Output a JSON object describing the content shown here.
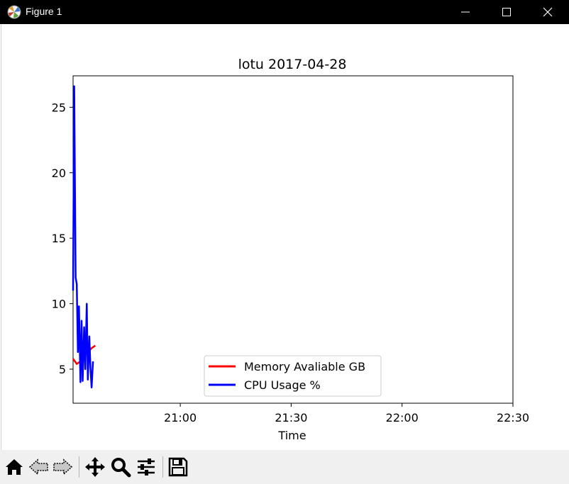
{
  "window": {
    "title": "Figure 1",
    "app_icon": "matplotlib-icon",
    "controls": [
      "minimize-icon",
      "maximize-icon",
      "close-icon"
    ]
  },
  "toolbar": {
    "buttons": [
      {
        "name": "home-icon",
        "tooltip": "Reset original view"
      },
      {
        "name": "back-arrow-icon",
        "tooltip": "Back to previous view"
      },
      {
        "name": "forward-arrow-icon",
        "tooltip": "Forward to next view"
      },
      {
        "name": "pan-move-icon",
        "tooltip": "Pan axes"
      },
      {
        "name": "zoom-magnifier-icon",
        "tooltip": "Zoom to rectangle"
      },
      {
        "name": "configure-subplots-icon",
        "tooltip": "Configure subplots"
      },
      {
        "name": "save-floppy-icon",
        "tooltip": "Save the figure"
      }
    ],
    "bg_color": "#f0f0f0"
  },
  "chart_data": {
    "type": "line",
    "title": "lotu 2017-04-28",
    "xlabel": "Time",
    "ylabel": "",
    "x_ticks": [
      "21:00",
      "21:30",
      "22:00",
      "22:30"
    ],
    "y_ticks": [
      5,
      10,
      15,
      20,
      25
    ],
    "xlim": [
      "20:31",
      "22:30"
    ],
    "ylim": [
      2.4,
      27.4
    ],
    "grid": false,
    "legend_position": "lower center",
    "series": [
      {
        "name": "Memory Avaliable GB",
        "color": "#ff0000",
        "points": [
          [
            "20:31",
            5.8
          ],
          [
            "20:32",
            5.4
          ],
          [
            "20:33",
            5.6
          ],
          [
            "20:34",
            6.0
          ],
          [
            "20:35",
            6.3
          ],
          [
            "20:36",
            6.6
          ],
          [
            "20:37",
            6.8
          ]
        ]
      },
      {
        "name": "CPU Usage %",
        "color": "#0000ff",
        "points": [
          [
            "20:31",
            11.0
          ],
          [
            "20:31.3",
            26.6
          ],
          [
            "20:31.7",
            12.0
          ],
          [
            "20:32",
            11.5
          ],
          [
            "20:32.3",
            6.3
          ],
          [
            "20:32.6",
            9.8
          ],
          [
            "20:33",
            4.0
          ],
          [
            "20:33.3",
            8.7
          ],
          [
            "20:33.6",
            4.1
          ],
          [
            "20:34",
            8.2
          ],
          [
            "20:34.3",
            5.0
          ],
          [
            "20:34.7",
            10.0
          ],
          [
            "20:35",
            4.2
          ],
          [
            "20:35.4",
            7.5
          ],
          [
            "20:35.7",
            5.1
          ],
          [
            "20:36",
            3.6
          ],
          [
            "20:36.4",
            5.6
          ]
        ]
      }
    ]
  }
}
